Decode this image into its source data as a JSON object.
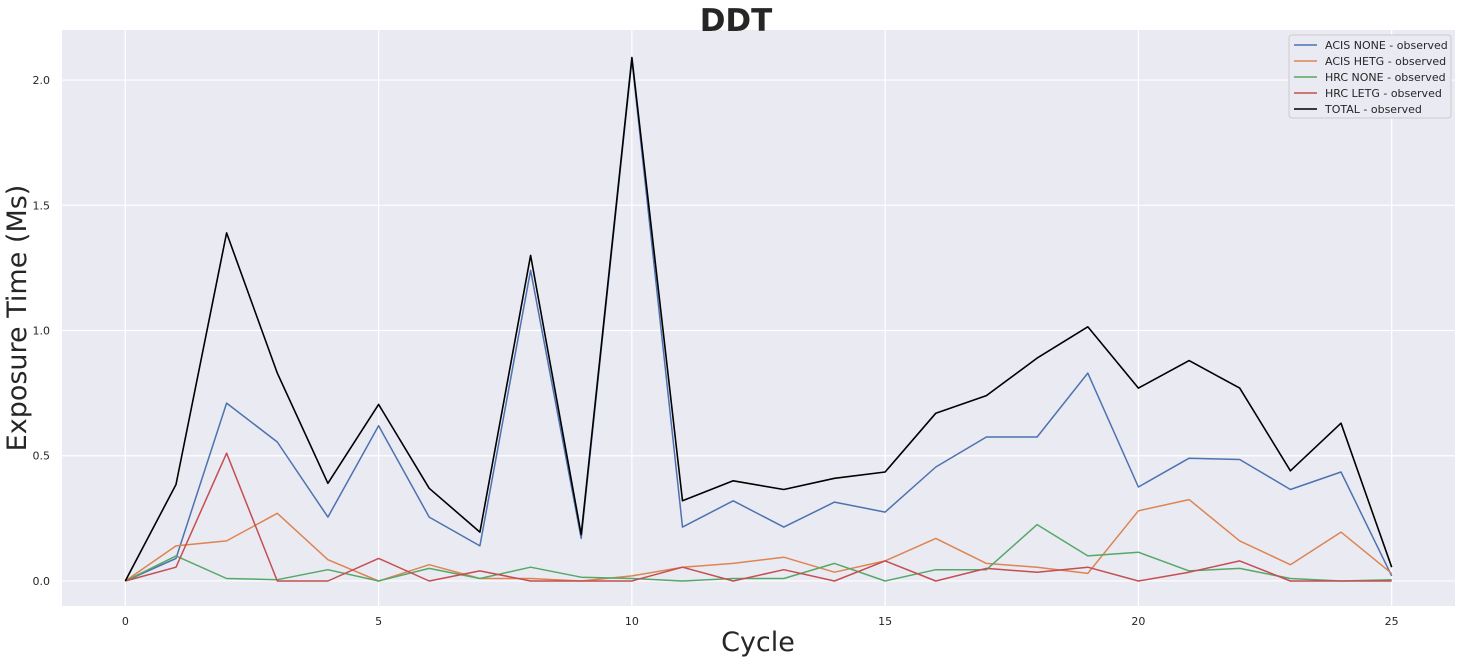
{
  "chart_data": {
    "type": "line",
    "title": "DDT",
    "xlabel": "Cycle",
    "ylabel": "Exposure Time (Ms)",
    "xlim": [
      -1.25,
      26.25
    ],
    "ylim": [
      -0.1,
      2.2
    ],
    "xticks": [
      0,
      5,
      10,
      15,
      20,
      25
    ],
    "yticks": [
      0.0,
      0.5,
      1.0,
      1.5,
      2.0
    ],
    "grid": true,
    "legend_position": "top-right",
    "x": [
      0,
      1,
      2,
      3,
      4,
      5,
      6,
      7,
      8,
      9,
      10,
      11,
      12,
      13,
      14,
      15,
      16,
      17,
      18,
      19,
      20,
      21,
      22,
      23,
      24,
      25
    ],
    "series": [
      {
        "name": "ACIS NONE - observed",
        "color": "#4c72b0",
        "values": [
          0.0,
          0.09,
          0.71,
          0.555,
          0.255,
          0.62,
          0.255,
          0.14,
          1.24,
          0.17,
          2.08,
          0.215,
          0.32,
          0.215,
          0.315,
          0.275,
          0.455,
          0.575,
          0.575,
          0.83,
          0.375,
          0.49,
          0.485,
          0.365,
          0.435,
          0.02
        ]
      },
      {
        "name": "ACIS HETG - observed",
        "color": "#dd8452",
        "values": [
          0.0,
          0.14,
          0.16,
          0.27,
          0.085,
          0.0,
          0.065,
          0.01,
          0.01,
          0.0,
          0.02,
          0.055,
          0.07,
          0.095,
          0.035,
          0.08,
          0.17,
          0.07,
          0.055,
          0.03,
          0.28,
          0.325,
          0.16,
          0.065,
          0.195,
          0.03
        ]
      },
      {
        "name": "HRC NONE - observed",
        "color": "#55a868",
        "values": [
          0.0,
          0.1,
          0.01,
          0.005,
          0.045,
          0.0,
          0.05,
          0.01,
          0.055,
          0.015,
          0.01,
          0.0,
          0.01,
          0.01,
          0.07,
          0.0,
          0.045,
          0.045,
          0.225,
          0.1,
          0.115,
          0.04,
          0.05,
          0.01,
          0.0,
          0.005
        ]
      },
      {
        "name": "HRC LETG - observed",
        "color": "#c44e52",
        "values": [
          0.0,
          0.055,
          0.51,
          0.0,
          0.0,
          0.09,
          0.0,
          0.04,
          0.0,
          0.0,
          0.0,
          0.055,
          0.0,
          0.045,
          0.0,
          0.08,
          0.0,
          0.05,
          0.035,
          0.055,
          0.0,
          0.035,
          0.08,
          0.0,
          0.0,
          0.0
        ]
      },
      {
        "name": "TOTAL - observed",
        "color": "#000000",
        "values": [
          0.0,
          0.385,
          1.39,
          0.83,
          0.39,
          0.705,
          0.37,
          0.195,
          1.3,
          0.185,
          2.09,
          0.32,
          0.4,
          0.365,
          0.41,
          0.435,
          0.67,
          0.74,
          0.89,
          1.015,
          0.77,
          0.88,
          0.77,
          0.44,
          0.63,
          0.055
        ]
      }
    ]
  }
}
